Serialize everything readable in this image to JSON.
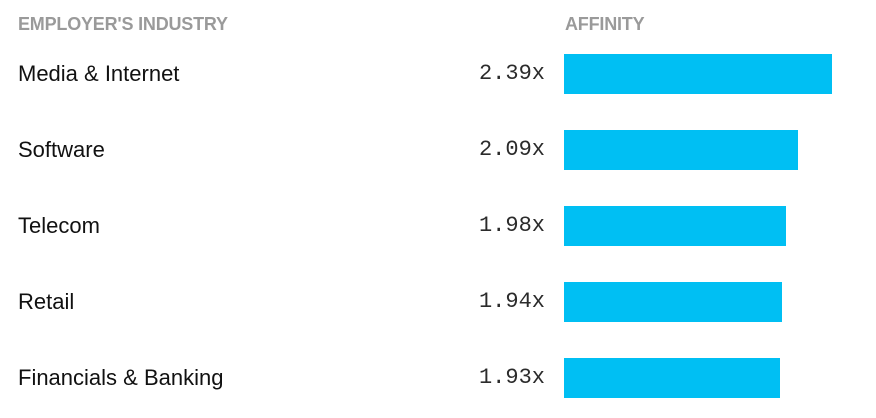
{
  "headers": {
    "industry": "EMPLOYER'S INDUSTRY",
    "affinity": "AFFINITY"
  },
  "colors": {
    "bar": "#00bff3",
    "header": "#9a9a9a"
  },
  "chart_data": {
    "type": "bar",
    "orientation": "horizontal",
    "categories": [
      "Media & Internet",
      "Software",
      "Telecom",
      "Retail",
      "Financials & Banking"
    ],
    "values": [
      2.39,
      2.09,
      1.98,
      1.94,
      1.93
    ],
    "value_labels": [
      "2.39x",
      "2.09x",
      "1.98x",
      "1.94x",
      "1.93x"
    ],
    "xlim": [
      0,
      2.39
    ],
    "grid": false,
    "legend": "none"
  }
}
